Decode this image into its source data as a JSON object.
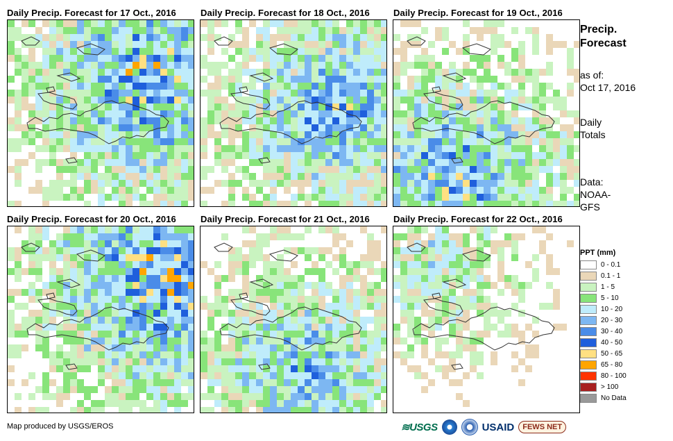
{
  "panels": [
    {
      "title": "Daily Precip. Forecast for 17 Oct., 2016",
      "seed": 17,
      "bias": 0.55,
      "blob": [
        0.75,
        0.3
      ]
    },
    {
      "title": "Daily Precip. Forecast for 18 Oct., 2016",
      "seed": 18,
      "bias": 0.45,
      "blob": [
        0.7,
        0.45
      ]
    },
    {
      "title": "Daily Precip. Forecast for 19 Oct., 2016",
      "seed": 19,
      "bias": 0.5,
      "blob": [
        0.3,
        0.85
      ]
    },
    {
      "title": "Daily Precip. Forecast for 20 Oct., 2016",
      "seed": 20,
      "bias": 0.6,
      "blob": [
        0.85,
        0.25
      ]
    },
    {
      "title": "Daily Precip. Forecast for 21 Oct., 2016",
      "seed": 21,
      "bias": 0.4,
      "blob": [
        0.55,
        0.75
      ]
    },
    {
      "title": "Daily Precip. Forecast for 22 Oct., 2016",
      "seed": 22,
      "bias": 0.2,
      "blob": [
        0.2,
        0.2
      ]
    }
  ],
  "sidebar": {
    "title_line1": "Precip.",
    "title_line2": "Forecast",
    "asof_label": "as of:",
    "asof_date": "Oct 17, 2016",
    "totals_line1": "Daily",
    "totals_line2": "Totals",
    "source_line1": "Data:",
    "source_line2": "NOAA-",
    "source_line3": "GFS"
  },
  "legend": {
    "title": "PPT (mm)",
    "classes": [
      {
        "label": "0 - 0.1",
        "color": "#ffffff"
      },
      {
        "label": "0.1 - 1",
        "color": "#ead7b8"
      },
      {
        "label": "1 - 5",
        "color": "#c9f3c0"
      },
      {
        "label": "5 - 10",
        "color": "#88e47a"
      },
      {
        "label": "10 - 20",
        "color": "#bfecfb"
      },
      {
        "label": "20 - 30",
        "color": "#7db7f2"
      },
      {
        "label": "30 - 40",
        "color": "#4a8ce8"
      },
      {
        "label": "40 - 50",
        "color": "#1f5fdc"
      },
      {
        "label": "50 - 65",
        "color": "#ffe082"
      },
      {
        "label": "65 - 80",
        "color": "#ffa500"
      },
      {
        "label": "80 - 100",
        "color": "#ff3300"
      },
      {
        "label": "> 100",
        "color": "#a82020"
      },
      {
        "label": "No Data",
        "color": "#999999"
      }
    ]
  },
  "credit": "Map produced by USGS/EROS",
  "logos": {
    "usgs": "≋USGS",
    "usaid": "USAID",
    "fews": "FEWS NET"
  }
}
